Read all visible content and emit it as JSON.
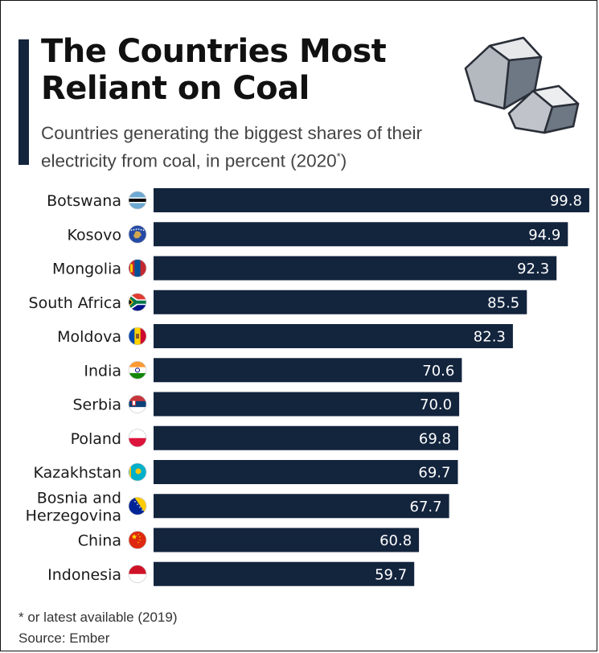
{
  "header": {
    "title_line1": "The Countries Most",
    "title_line2": "Reliant on Coal",
    "subtitle": "Countries generating the biggest shares of their electricity from coal, in percent (2020",
    "subtitle_sup": "*",
    "subtitle_end": ")"
  },
  "illustration": {
    "icon": "coal-lumps-icon"
  },
  "chart_data": {
    "type": "bar",
    "orientation": "horizontal",
    "title": "The Countries Most Reliant on Coal",
    "subtitle": "Countries generating the biggest shares of their electricity from coal, in percent (2020*)",
    "xlabel": "",
    "ylabel": "",
    "xlim": [
      0,
      100
    ],
    "grid": false,
    "legend": "none",
    "categories": [
      "Botswana",
      "Kosovo",
      "Mongolia",
      "South Africa",
      "Moldova",
      "India",
      "Serbia",
      "Poland",
      "Kazakhstan",
      "Bosnia and Herzegovina",
      "China",
      "Indonesia"
    ],
    "values": [
      99.8,
      94.9,
      92.3,
      85.5,
      82.3,
      70.6,
      70.0,
      69.8,
      69.7,
      67.7,
      60.8,
      59.7
    ],
    "value_labels": [
      "99.8",
      "94.9",
      "92.3",
      "85.5",
      "82.3",
      "70.6",
      "70.0",
      "69.8",
      "69.7",
      "67.7",
      "60.8",
      "59.7"
    ],
    "flags": [
      "botswana-flag-icon",
      "kosovo-flag-icon",
      "mongolia-flag-icon",
      "south-africa-flag-icon",
      "moldova-flag-icon",
      "india-flag-icon",
      "serbia-flag-icon",
      "poland-flag-icon",
      "kazakhstan-flag-icon",
      "bosnia-flag-icon",
      "china-flag-icon",
      "indonesia-flag-icon"
    ],
    "bar_color": "#13243d"
  },
  "footer": {
    "note": "* or latest available (2019)",
    "source": "Source: Ember"
  }
}
